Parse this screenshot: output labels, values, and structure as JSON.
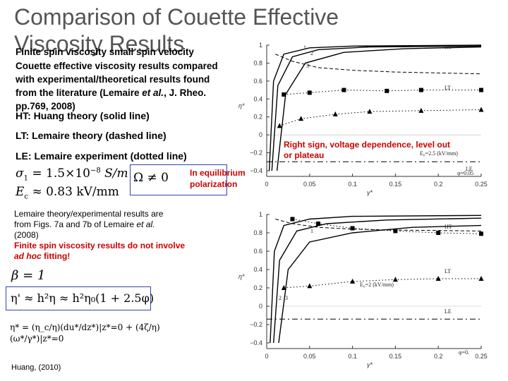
{
  "slide": {
    "title_line1": "Comparison of Couette Effective",
    "title_line2": "Viscosity Results",
    "subtitle": "Finite spin viscosity small spin velocity",
    "intro": [
      "Couette effective viscosity results compared",
      "with experimental/theoretical results found",
      "from the literature (Lemaire et al., J. Rheo.",
      "pp.769, 2008)"
    ],
    "intro_parts": {
      "l3_pre": "from the literature (Lemaire ",
      "l3_em": "et al.",
      "l3_post": ", J. Rheo."
    },
    "ht_label": "HT: Huang theory (solid line)",
    "lt_label": "LT: Lemaire theory (dashed line)",
    "le_label": "LE: Lemaire experiment (dotted line)",
    "sigma_eq_lhs": "σ",
    "sigma_eq_sub": "1",
    "sigma_eq_rhs": "= 1.5×10",
    "sigma_exp": "−8",
    "sigma_unit": "S/m",
    "ec_eq_lhs": "E",
    "ec_eq_sub": "c",
    "ec_eq_rhs": "≈ 0.83 kV/mm",
    "omega_eq": "Ω ≠ 0",
    "equilibrium_note": [
      "In equilibrium",
      "polarization"
    ],
    "lemaire_note": [
      "Lemaire theory/experimental results are",
      "from Figs. 7a and 7b of Lemaire et al.",
      "(2008)"
    ],
    "lemaire_note_parts": {
      "l2_pre": "from Figs. 7a and 7b of Lemaire ",
      "l2_em": "et al."
    },
    "finite_note": [
      "Finite spin viscosity results do not involve",
      "ad hoc fitting!"
    ],
    "finite_note_parts": {
      "l2_em": "ad hoc",
      "l2_post": " fitting!"
    },
    "beta_eq": "β = 1",
    "eta_prime_eq": "η' ≈ h²η ≈ h²η₀(1 + 2.5φ)",
    "eta_star_eq": "η* = (η_c/η)(du*/dz*)|z*=0 + (4ζ/η)(ω*/γ*)|z*=0",
    "side_note": [
      "Right sign, voltage dependence, level out",
      "or plateau"
    ],
    "citation": "Huang, (2010)",
    "colors": {
      "title": "#555555",
      "accent_red": "#cc0000",
      "box_border": "#3344aa"
    }
  },
  "chart_data": [
    {
      "type": "line",
      "xlabel": "γ*",
      "ylabel": "η*",
      "xlim": [
        0,
        0.25
      ],
      "ylim": [
        -0.4,
        1
      ],
      "x_ticks": [
        "0",
        "0.05",
        "0.1",
        "0.15",
        "0.2",
        "0.25"
      ],
      "y_ticks": [
        "1",
        "0.8",
        "0.6",
        "0.4",
        "0.2",
        "0",
        "−0.2",
        "−0.4"
      ],
      "annotations": [
        "HT",
        "LT",
        "LE",
        "1",
        "2",
        "3",
        "E₀=2.5 (kV/mm)",
        "φ=0.05"
      ],
      "series": [
        {
          "name": "HT",
          "style": "solid",
          "points": [
            [
              0.003,
              -0.4
            ],
            [
              0.008,
              0.6
            ],
            [
              0.02,
              0.9
            ],
            [
              0.05,
              0.97
            ],
            [
              0.1,
              0.99
            ],
            [
              0.25,
              1.0
            ]
          ]
        },
        {
          "name": "HT",
          "style": "solid",
          "points": [
            [
              0.006,
              -0.4
            ],
            [
              0.013,
              0.55
            ],
            [
              0.03,
              0.87
            ],
            [
              0.06,
              0.95
            ],
            [
              0.12,
              0.98
            ],
            [
              0.25,
              0.99
            ]
          ]
        },
        {
          "name": "HT",
          "style": "solid",
          "points": [
            [
              0.012,
              -0.4
            ],
            [
              0.022,
              0.45
            ],
            [
              0.045,
              0.8
            ],
            [
              0.09,
              0.92
            ],
            [
              0.16,
              0.96
            ],
            [
              0.25,
              0.98
            ]
          ]
        },
        {
          "name": "LT",
          "style": "dashed",
          "points": [
            [
              0.01,
              0.9
            ],
            [
              0.03,
              0.82
            ],
            [
              0.06,
              0.75
            ],
            [
              0.1,
              0.72
            ],
            [
              0.15,
              0.7
            ],
            [
              0.25,
              0.68
            ]
          ]
        },
        {
          "name": "LE",
          "style": "dotted",
          "marker": "square",
          "points": [
            [
              0.02,
              0.45
            ],
            [
              0.05,
              0.47
            ],
            [
              0.09,
              0.5
            ],
            [
              0.14,
              0.49
            ],
            [
              0.18,
              0.5
            ],
            [
              0.25,
              0.5
            ]
          ]
        },
        {
          "name": "LE",
          "style": "dotted",
          "marker": "triangle",
          "points": [
            [
              0.015,
              0.1
            ],
            [
              0.04,
              0.18
            ],
            [
              0.08,
              0.23
            ],
            [
              0.12,
              0.26
            ],
            [
              0.18,
              0.27
            ],
            [
              0.25,
              0.28
            ]
          ]
        },
        {
          "name": "LT",
          "style": "dash-dot",
          "points": [
            [
              0.0,
              -0.3
            ],
            [
              0.05,
              -0.3
            ],
            [
              0.1,
              -0.3
            ],
            [
              0.2,
              -0.3
            ],
            [
              0.25,
              -0.3
            ]
          ]
        }
      ]
    },
    {
      "type": "line",
      "xlabel": "γ*",
      "ylabel": "η*",
      "xlim": [
        0,
        0.25
      ],
      "ylim": [
        -0.4,
        1
      ],
      "x_ticks": [
        "0",
        "0.05",
        "0.1",
        "0.15",
        "0.2",
        "0.25"
      ],
      "y_ticks": [
        "1",
        "0.8",
        "0.6",
        "0.4",
        "0.2",
        "0",
        "−0.2",
        "−0.4"
      ],
      "annotations": [
        "HT",
        "LT",
        "LE",
        "1",
        "2",
        "3",
        "E₀=2 (kV/mm)",
        "φ=0."
      ],
      "series": [
        {
          "name": "HT",
          "style": "solid",
          "points": [
            [
              0.004,
              -0.4
            ],
            [
              0.009,
              0.6
            ],
            [
              0.02,
              0.88
            ],
            [
              0.05,
              0.95
            ],
            [
              0.1,
              0.98
            ],
            [
              0.25,
              0.99
            ]
          ]
        },
        {
          "name": "HT",
          "style": "solid",
          "points": [
            [
              0.008,
              -0.4
            ],
            [
              0.015,
              0.5
            ],
            [
              0.035,
              0.82
            ],
            [
              0.07,
              0.9
            ],
            [
              0.14,
              0.94
            ],
            [
              0.25,
              0.96
            ]
          ]
        },
        {
          "name": "HT",
          "style": "solid",
          "points": [
            [
              0.014,
              -0.4
            ],
            [
              0.025,
              0.4
            ],
            [
              0.05,
              0.7
            ],
            [
              0.1,
              0.8
            ],
            [
              0.17,
              0.86
            ],
            [
              0.25,
              0.88
            ]
          ]
        },
        {
          "name": "LT",
          "style": "dashed",
          "points": [
            [
              0.01,
              0.95
            ],
            [
              0.03,
              0.9
            ],
            [
              0.06,
              0.86
            ],
            [
              0.1,
              0.84
            ],
            [
              0.15,
              0.83
            ],
            [
              0.25,
              0.82
            ]
          ]
        },
        {
          "name": "LE",
          "style": "dotted",
          "marker": "square",
          "points": [
            [
              0.03,
              0.95
            ],
            [
              0.06,
              0.9
            ],
            [
              0.1,
              0.85
            ],
            [
              0.15,
              0.82
            ],
            [
              0.2,
              0.8
            ],
            [
              0.25,
              0.79
            ]
          ]
        },
        {
          "name": "LE",
          "style": "dotted",
          "marker": "triangle",
          "points": [
            [
              0.02,
              0.2
            ],
            [
              0.05,
              0.22
            ],
            [
              0.1,
              0.27
            ],
            [
              0.15,
              0.29
            ],
            [
              0.2,
              0.3
            ],
            [
              0.25,
              0.3
            ]
          ]
        },
        {
          "name": "LT",
          "style": "dash-dot",
          "points": [
            [
              0.0,
              -0.14
            ],
            [
              0.05,
              -0.14
            ],
            [
              0.1,
              -0.14
            ],
            [
              0.2,
              -0.14
            ],
            [
              0.25,
              -0.14
            ]
          ]
        }
      ]
    }
  ]
}
